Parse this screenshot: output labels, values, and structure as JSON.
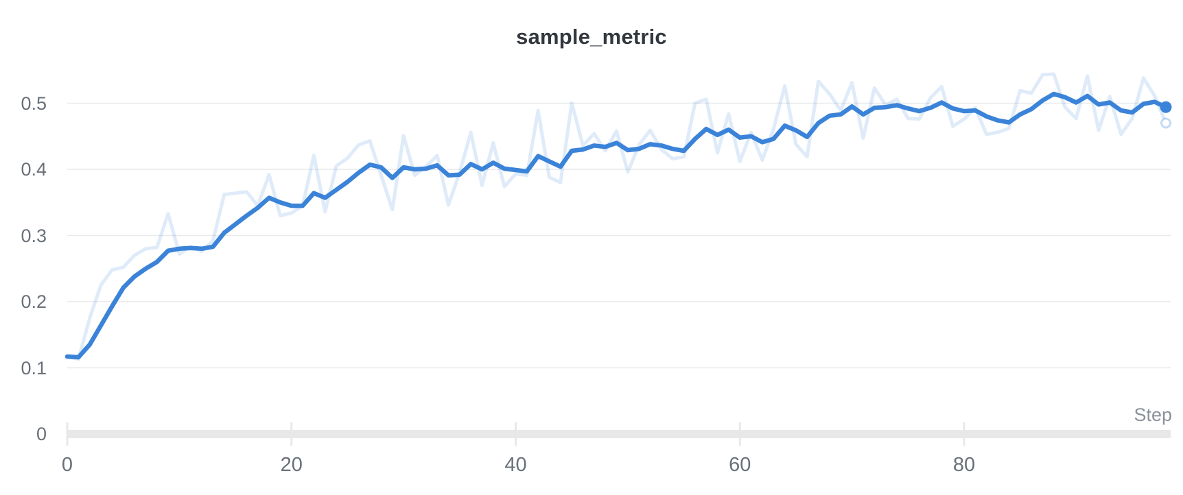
{
  "header": {
    "title": "sample_metric"
  },
  "axes": {
    "x": {
      "label": "Step",
      "ticks": [
        0,
        20,
        40,
        60,
        80
      ],
      "tick_labels": [
        "0",
        "20",
        "40",
        "60",
        "80"
      ]
    },
    "y": {
      "ticks": [
        0,
        0.1,
        0.2,
        0.3,
        0.4,
        0.5
      ],
      "tick_labels": [
        "0",
        "0.1",
        "0.2",
        "0.3",
        "0.4",
        "0.5"
      ]
    }
  },
  "colors": {
    "line_blue": "#3a83d8",
    "raw_line_opacity": 0.16,
    "gridline": "#e8e9ea",
    "axis_bar": "#e8e8e8",
    "title_text": "#33383e",
    "tick_text": "#697078",
    "axis_title_text": "#8b9198",
    "background": "#ffffff"
  },
  "chart_data": {
    "type": "line",
    "title": "sample_metric",
    "xlabel": "Step",
    "ylabel": "",
    "x_description": "step index, one point per step",
    "xlim": [
      0,
      98
    ],
    "ylim": [
      0,
      0.56
    ],
    "grid": true,
    "legend": "none",
    "x": "0..98 (integer steps)",
    "series": [
      {
        "name": "raw",
        "role": "unsmoothed original values (faint line)",
        "values": [
          0.117,
          0.113,
          0.175,
          0.225,
          0.248,
          0.252,
          0.27,
          0.28,
          0.282,
          0.333,
          0.272,
          0.283,
          0.276,
          0.292,
          0.362,
          0.364,
          0.366,
          0.345,
          0.392,
          0.33,
          0.334,
          0.345,
          0.421,
          0.336,
          0.405,
          0.417,
          0.437,
          0.443,
          0.391,
          0.339,
          0.451,
          0.391,
          0.404,
          0.421,
          0.346,
          0.395,
          0.456,
          0.376,
          0.44,
          0.374,
          0.393,
          0.391,
          0.489,
          0.388,
          0.38,
          0.5,
          0.436,
          0.454,
          0.428,
          0.458,
          0.396,
          0.437,
          0.459,
          0.43,
          0.416,
          0.419,
          0.5,
          0.506,
          0.425,
          0.484,
          0.412,
          0.456,
          0.414,
          0.461,
          0.526,
          0.438,
          0.419,
          0.533,
          0.514,
          0.489,
          0.531,
          0.447,
          0.523,
          0.497,
          0.506,
          0.477,
          0.476,
          0.508,
          0.525,
          0.465,
          0.476,
          0.493,
          0.453,
          0.456,
          0.462,
          0.519,
          0.515,
          0.543,
          0.544,
          0.494,
          0.477,
          0.541,
          0.459,
          0.51,
          0.453,
          0.477,
          0.538,
          0.511,
          0.47
        ]
      },
      {
        "name": "smoothed",
        "role": "EMA-smoothed values (bold line, smoothing ~0.75)",
        "values": [
          0.117,
          0.116,
          0.135,
          0.164,
          0.193,
          0.221,
          0.238,
          0.25,
          0.26,
          0.277,
          0.28,
          0.281,
          0.28,
          0.283,
          0.304,
          0.317,
          0.33,
          0.342,
          0.357,
          0.35,
          0.345,
          0.345,
          0.364,
          0.357,
          0.369,
          0.381,
          0.395,
          0.407,
          0.403,
          0.387,
          0.403,
          0.4,
          0.401,
          0.406,
          0.391,
          0.392,
          0.408,
          0.4,
          0.41,
          0.401,
          0.399,
          0.397,
          0.42,
          0.412,
          0.404,
          0.428,
          0.43,
          0.436,
          0.434,
          0.44,
          0.429,
          0.431,
          0.438,
          0.436,
          0.431,
          0.428,
          0.446,
          0.461,
          0.452,
          0.46,
          0.448,
          0.45,
          0.441,
          0.446,
          0.466,
          0.459,
          0.449,
          0.47,
          0.481,
          0.483,
          0.495,
          0.483,
          0.493,
          0.494,
          0.497,
          0.492,
          0.488,
          0.493,
          0.501,
          0.492,
          0.488,
          0.489,
          0.48,
          0.474,
          0.471,
          0.483,
          0.491,
          0.504,
          0.514,
          0.509,
          0.501,
          0.511,
          0.498,
          0.501,
          0.489,
          0.486,
          0.499,
          0.502,
          0.494
        ]
      }
    ],
    "endpoint_markers": {
      "smoothed_dot_value": 0.494,
      "raw_ring_value": 0.47
    }
  }
}
